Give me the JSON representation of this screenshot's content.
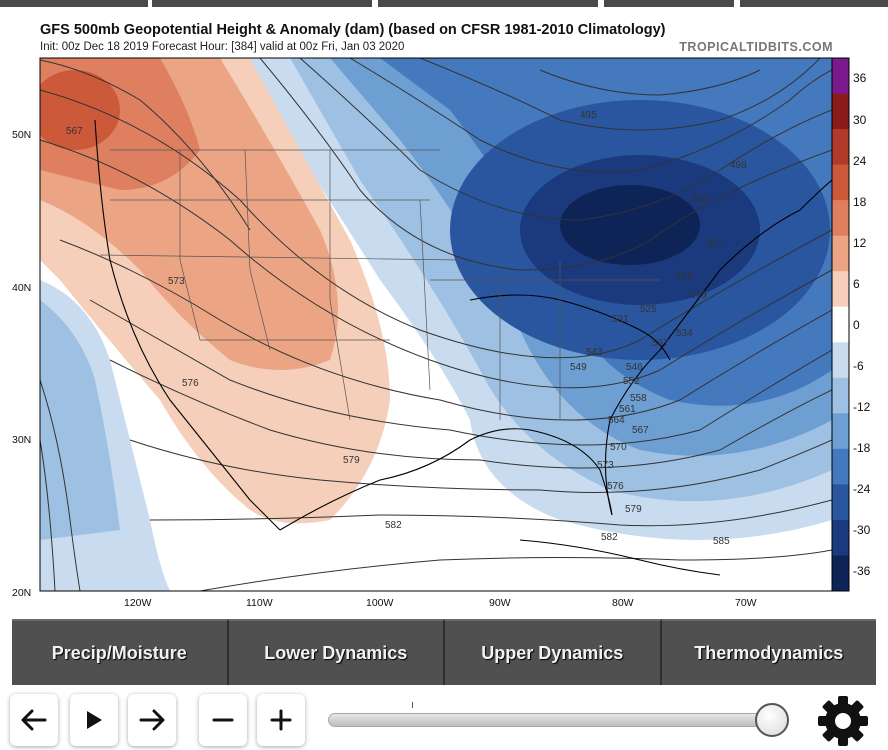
{
  "header": {
    "title": "GFS 500mb Geopotential Height & Anomaly (dam) (based on CFSR 1981-2010 Climatology)",
    "subtitle": "Init: 00z Dec 18 2019   Forecast Hour: [384]   valid at 00z Fri, Jan 03 2020",
    "brand": "TROPICALTIDBITS.COM"
  },
  "map": {
    "lat_labels": [
      "50N",
      "40N",
      "30N",
      "20N"
    ],
    "lon_labels": [
      "120W",
      "110W",
      "100W",
      "90W",
      "80W",
      "70W"
    ],
    "contour_labels": [
      "567",
      "573",
      "576",
      "579",
      "582",
      "585",
      "495",
      "498",
      "501",
      "507",
      "513",
      "519",
      "525",
      "531",
      "534",
      "537",
      "543",
      "546",
      "549",
      "552",
      "558",
      "561",
      "564",
      "567",
      "570",
      "573",
      "576",
      "579",
      "582"
    ],
    "colorbar": {
      "labels": [
        "36",
        "30",
        "24",
        "18",
        "12",
        "6",
        "0",
        "-6",
        "-12",
        "-18",
        "-24",
        "-30",
        "-36"
      ],
      "colors": [
        "#7a1a8c",
        "#8b1a1a",
        "#b13a2a",
        "#cc5a3a",
        "#de8060",
        "#eba585",
        "#f5cfba",
        "#ffffff",
        "#c9dcef",
        "#9ec0e2",
        "#6e9fd2",
        "#4479bd",
        "#2a569f",
        "#1b3a7e",
        "#0e2457"
      ]
    }
  },
  "categories": [
    "Precip/Moisture",
    "Lower Dynamics",
    "Upper Dynamics",
    "Thermodynamics"
  ],
  "controls": {
    "back_icon": "arrow-left-icon",
    "play_icon": "play-icon",
    "forward_icon": "arrow-right-icon",
    "zoom_out_icon": "minus-icon",
    "zoom_in_icon": "plus-icon",
    "settings_icon": "gear-icon",
    "slider_position": 0.97
  }
}
